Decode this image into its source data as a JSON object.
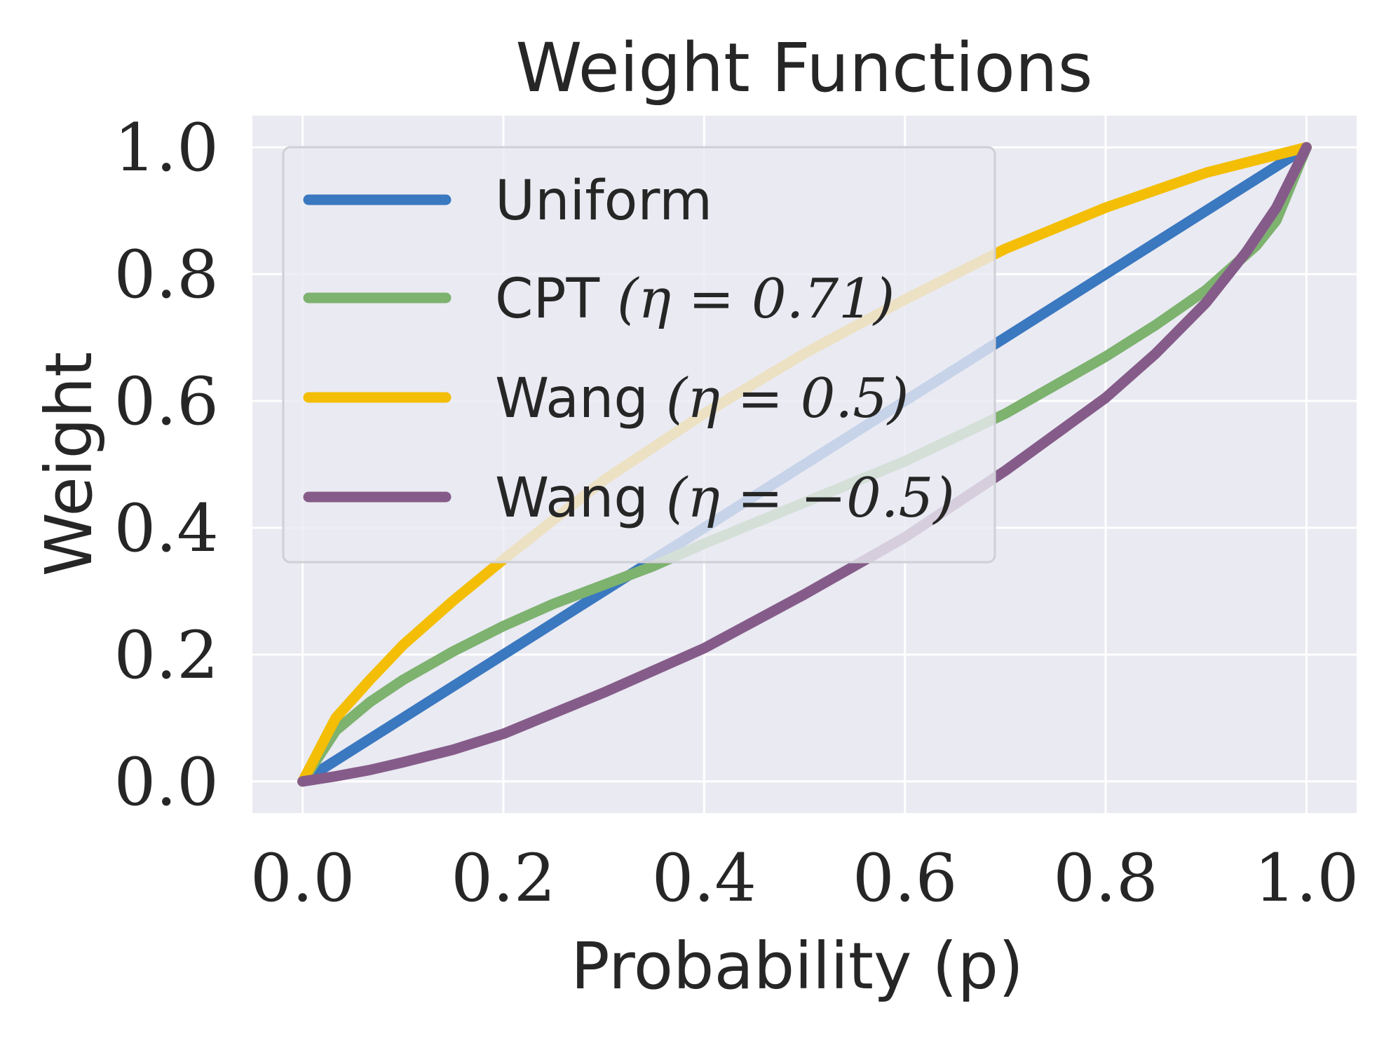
{
  "chart_data": {
    "type": "line",
    "title": "Weight Functions",
    "xlabel": "Probability (p)",
    "ylabel": "Weight",
    "xlim": [
      -0.05,
      1.05
    ],
    "ylim": [
      -0.05,
      1.05
    ],
    "xticks": [
      0.0,
      0.2,
      0.4,
      0.6,
      0.8,
      1.0
    ],
    "yticks": [
      0.0,
      0.2,
      0.4,
      0.6,
      0.8,
      1.0
    ],
    "xtick_labels": [
      "0.0",
      "0.2",
      "0.4",
      "0.6",
      "0.8",
      "1.0"
    ],
    "ytick_labels": [
      "0.0",
      "0.2",
      "0.4",
      "0.6",
      "0.8",
      "1.0"
    ],
    "grid": true,
    "legend_position": "top-left",
    "background_color": "#eaeaf2",
    "series": [
      {
        "name": "Uniform",
        "color": "#3a78c0",
        "x": [
          0.0,
          0.1,
          0.2,
          0.3,
          0.4,
          0.5,
          0.6,
          0.7,
          0.8,
          0.9,
          1.0
        ],
        "y": [
          0.0,
          0.1,
          0.2,
          0.3,
          0.4,
          0.5,
          0.6,
          0.7,
          0.8,
          0.9,
          1.0
        ]
      },
      {
        "name": "CPT (η = 0.71)",
        "color": "#7db26f",
        "x": [
          0.0,
          0.033,
          0.067,
          0.1,
          0.15,
          0.2,
          0.25,
          0.3,
          0.35,
          0.4,
          0.5,
          0.6,
          0.7,
          0.8,
          0.85,
          0.9,
          0.95,
          0.97,
          1.0
        ],
        "y": [
          0.0,
          0.08,
          0.125,
          0.16,
          0.205,
          0.245,
          0.28,
          0.31,
          0.34,
          0.375,
          0.44,
          0.505,
          0.58,
          0.67,
          0.72,
          0.775,
          0.845,
          0.885,
          1.0
        ]
      },
      {
        "name": "Wang (η = 0.5)",
        "color": "#f3be05",
        "x": [
          0.0,
          0.033,
          0.067,
          0.1,
          0.15,
          0.2,
          0.3,
          0.4,
          0.5,
          0.6,
          0.7,
          0.8,
          0.9,
          1.0
        ],
        "y": [
          0.0,
          0.1,
          0.16,
          0.215,
          0.285,
          0.35,
          0.475,
          0.58,
          0.675,
          0.76,
          0.84,
          0.905,
          0.96,
          1.0
        ]
      },
      {
        "name": "Wang (η = −0.5)",
        "color": "#855c89",
        "x": [
          0.0,
          0.033,
          0.067,
          0.1,
          0.15,
          0.2,
          0.3,
          0.4,
          0.5,
          0.6,
          0.7,
          0.8,
          0.85,
          0.9,
          0.94,
          0.97,
          1.0
        ],
        "y": [
          0.0,
          0.008,
          0.018,
          0.03,
          0.05,
          0.075,
          0.14,
          0.21,
          0.295,
          0.385,
          0.49,
          0.605,
          0.675,
          0.755,
          0.835,
          0.905,
          1.0
        ]
      }
    ],
    "legend_entries": [
      {
        "prefix": "Uniform",
        "math": ""
      },
      {
        "prefix": "CPT ",
        "math": "(η = 0.71)"
      },
      {
        "prefix": "Wang ",
        "math": "(η = 0.5)"
      },
      {
        "prefix": "Wang ",
        "math": "(η = −0.5)"
      }
    ]
  }
}
